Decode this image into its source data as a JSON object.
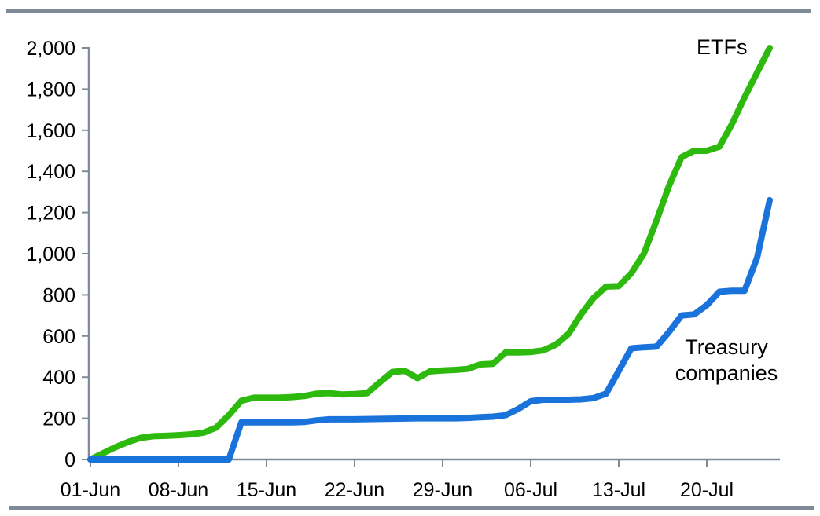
{
  "chart_data": {
    "type": "line",
    "title": "",
    "xlabel": "",
    "ylabel": "",
    "grid": false,
    "legend_position": "inline-labels-on-plot",
    "ylim": [
      0,
      2000
    ],
    "y_tick_step": 200,
    "y_tick_labels": [
      "0",
      "200",
      "400",
      "600",
      "800",
      "1,000",
      "1,200",
      "1,400",
      "1,600",
      "1,800",
      "2,000"
    ],
    "x_tick_labels": [
      "01-Jun",
      "08-Jun",
      "15-Jun",
      "22-Jun",
      "29-Jun",
      "06-Jul",
      "13-Jul",
      "20-Jul"
    ],
    "x_tick_days": [
      0,
      7,
      14,
      21,
      28,
      35,
      42,
      49
    ],
    "x_range_days": [
      0,
      54
    ],
    "x_start_date": "01-Jun",
    "x_end_date": "25-Jul",
    "series": [
      {
        "name": "ETFs",
        "color": "#2db90e",
        "values": [
          0,
          30,
          60,
          85,
          105,
          113,
          115,
          118,
          122,
          130,
          155,
          215,
          285,
          300,
          300,
          300,
          303,
          308,
          320,
          322,
          316,
          318,
          322,
          375,
          425,
          430,
          395,
          428,
          432,
          435,
          440,
          462,
          465,
          520,
          520,
          522,
          530,
          558,
          610,
          705,
          785,
          840,
          842,
          905,
          1000,
          1160,
          1330,
          1470,
          1500,
          1500,
          1520,
          1630,
          1760,
          1880,
          2000
        ]
      },
      {
        "name": "Treasury companies",
        "color": "#1a73da",
        "values": [
          0,
          0,
          0,
          0,
          0,
          0,
          0,
          0,
          0,
          0,
          0,
          0,
          180,
          180,
          180,
          180,
          180,
          182,
          190,
          195,
          195,
          195,
          196,
          197,
          198,
          199,
          200,
          200,
          200,
          200,
          202,
          205,
          208,
          215,
          245,
          283,
          290,
          290,
          290,
          292,
          298,
          320,
          430,
          540,
          545,
          548,
          620,
          700,
          705,
          750,
          815,
          820,
          820,
          980,
          1260
        ]
      }
    ],
    "colors": {
      "axis": "#808a94",
      "border_rule": "#7e8a98",
      "tick_label": "#000000"
    }
  }
}
